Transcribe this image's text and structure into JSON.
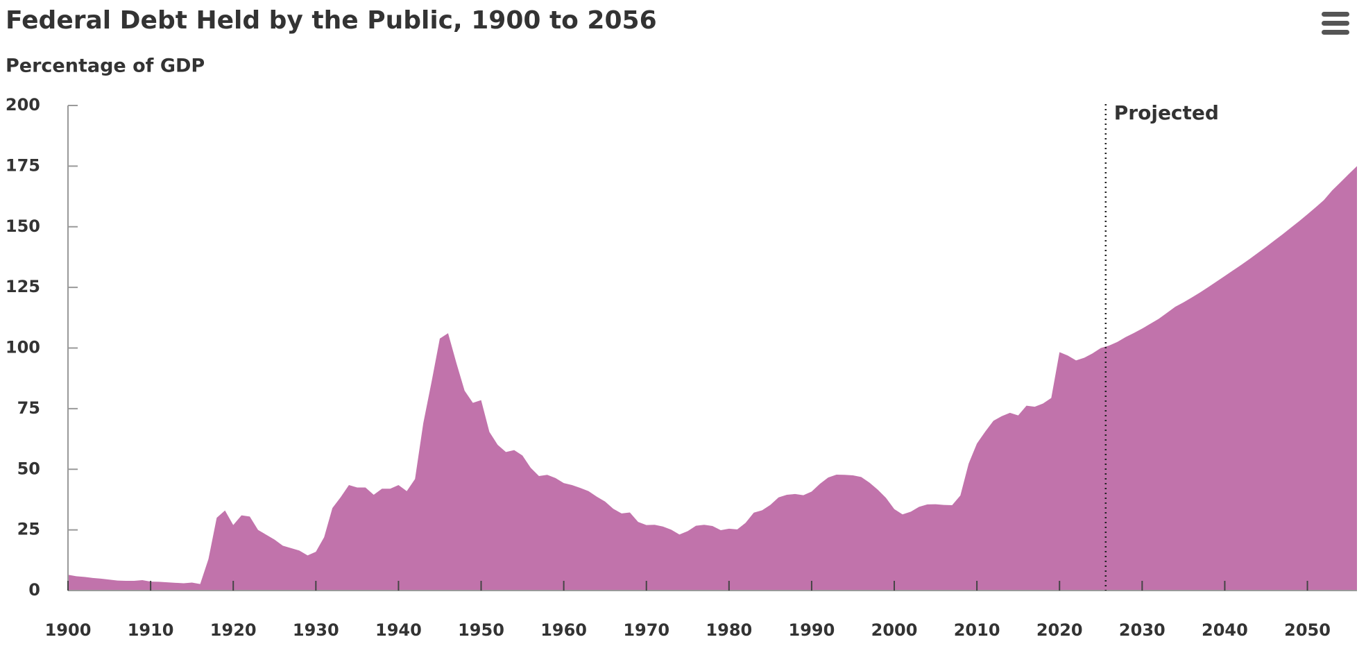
{
  "chart_data": {
    "type": "area",
    "title": "Federal Debt Held by the Public, 1900 to 2056",
    "subtitle": "Percentage of GDP",
    "x": [
      1900,
      1901,
      1902,
      1903,
      1904,
      1905,
      1906,
      1907,
      1908,
      1909,
      1910,
      1911,
      1912,
      1913,
      1914,
      1915,
      1916,
      1917,
      1918,
      1919,
      1920,
      1921,
      1922,
      1923,
      1924,
      1925,
      1926,
      1927,
      1928,
      1929,
      1930,
      1931,
      1932,
      1933,
      1934,
      1935,
      1936,
      1937,
      1938,
      1939,
      1940,
      1941,
      1942,
      1943,
      1944,
      1945,
      1946,
      1947,
      1948,
      1949,
      1950,
      1951,
      1952,
      1953,
      1954,
      1955,
      1956,
      1957,
      1958,
      1959,
      1960,
      1961,
      1962,
      1963,
      1964,
      1965,
      1966,
      1967,
      1968,
      1969,
      1970,
      1971,
      1972,
      1973,
      1974,
      1975,
      1976,
      1977,
      1978,
      1979,
      1980,
      1981,
      1982,
      1983,
      1984,
      1985,
      1986,
      1987,
      1988,
      1989,
      1990,
      1991,
      1992,
      1993,
      1994,
      1995,
      1996,
      1997,
      1998,
      1999,
      2000,
      2001,
      2002,
      2003,
      2004,
      2005,
      2006,
      2007,
      2008,
      2009,
      2010,
      2011,
      2012,
      2013,
      2014,
      2015,
      2016,
      2017,
      2018,
      2019,
      2020,
      2021,
      2022,
      2023,
      2024,
      2025,
      2026,
      2027,
      2028,
      2029,
      2030,
      2031,
      2032,
      2033,
      2034,
      2035,
      2036,
      2037,
      2038,
      2039,
      2040,
      2041,
      2042,
      2043,
      2044,
      2045,
      2046,
      2047,
      2048,
      2049,
      2050,
      2051,
      2052,
      2053,
      2054,
      2055,
      2056
    ],
    "series": [
      {
        "name": "Federal Debt Held by the Public",
        "color": "#c173ab",
        "values": [
          6.5,
          5.9,
          5.6,
          5.2,
          4.9,
          4.5,
          4.1,
          4.0,
          4.0,
          4.3,
          3.7,
          3.6,
          3.4,
          3.2,
          3.0,
          3.3,
          2.7,
          13.0,
          30.0,
          33.0,
          27.0,
          31.0,
          30.5,
          25.0,
          23.0,
          21.0,
          18.5,
          17.5,
          16.5,
          14.5,
          16.0,
          22.0,
          34.0,
          38.5,
          43.5,
          42.5,
          42.5,
          39.5,
          42.0,
          42.0,
          43.5,
          41.0,
          46.0,
          69.0,
          86.0,
          103.9,
          106.1,
          93.9,
          82.4,
          77.4,
          78.5,
          65.4,
          60.1,
          57.1,
          57.9,
          55.7,
          50.6,
          47.2,
          47.7,
          46.4,
          44.3,
          43.5,
          42.3,
          41.0,
          38.7,
          36.7,
          33.7,
          31.8,
          32.2,
          28.3,
          27.0,
          27.1,
          26.4,
          25.1,
          23.1,
          24.5,
          26.7,
          27.1,
          26.6,
          24.9,
          25.5,
          25.2,
          27.9,
          32.1,
          33.1,
          35.3,
          38.4,
          39.5,
          39.8,
          39.3,
          40.8,
          44.0,
          46.6,
          47.8,
          47.7,
          47.5,
          46.8,
          44.5,
          41.6,
          38.2,
          33.6,
          31.4,
          32.5,
          34.5,
          35.5,
          35.6,
          35.3,
          35.2,
          39.2,
          52.3,
          60.6,
          65.5,
          70.0,
          71.9,
          73.3,
          72.2,
          76.2,
          75.8,
          77.1,
          79.4,
          98.3,
          96.9,
          94.9,
          96.0,
          97.8,
          100.0,
          101.0,
          102.5,
          104.5,
          106.2,
          108.0,
          110.0,
          112.0,
          114.5,
          117.0,
          118.8,
          120.8,
          122.9,
          125.1,
          127.4,
          129.7,
          132.0,
          134.3,
          136.7,
          139.2,
          141.7,
          144.3,
          146.9,
          149.6,
          152.3,
          155.1,
          158.0,
          161.0,
          165.0,
          168.3,
          171.7,
          175.0
        ]
      }
    ],
    "xlim": [
      1900,
      2056
    ],
    "xticks": [
      1900,
      1910,
      1920,
      1930,
      1940,
      1950,
      1960,
      1970,
      1980,
      1990,
      2000,
      2010,
      2020,
      2030,
      2040,
      2050
    ],
    "ylim": [
      0,
      200
    ],
    "yticks": [
      0,
      25,
      50,
      75,
      100,
      125,
      150,
      175,
      200
    ],
    "annotations": [
      {
        "text": "Projected",
        "x": 2025
      }
    ]
  }
}
